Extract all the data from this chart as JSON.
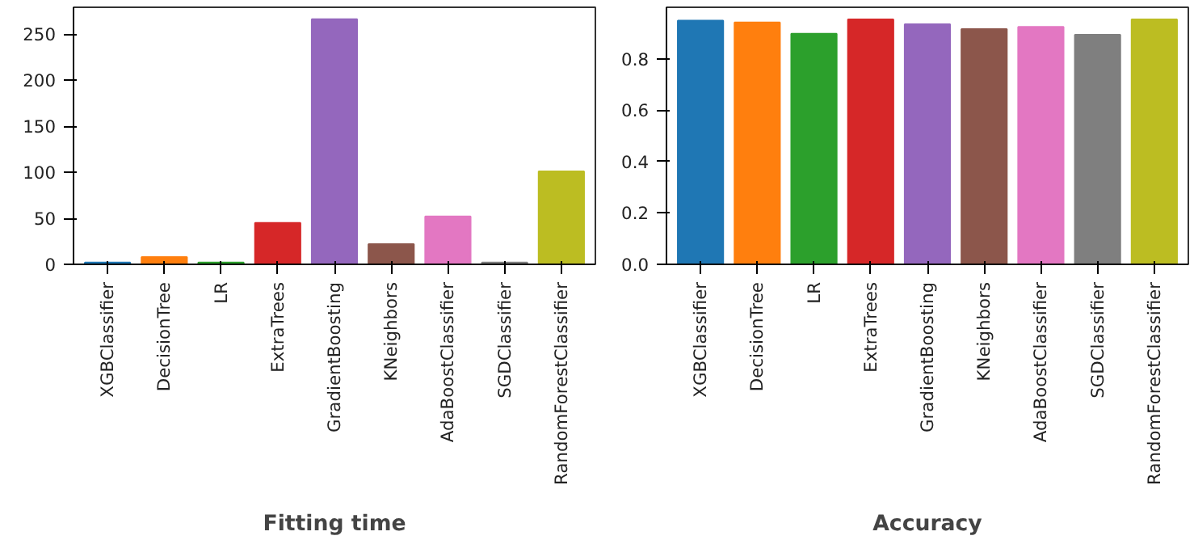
{
  "chart_data": [
    {
      "type": "bar",
      "xlabel": "Fitting time",
      "categories": [
        "XGBClassifier",
        "DecisionTree",
        "LR",
        "ExtraTrees",
        "GradientBoosting",
        "KNeighbors",
        "AdaBoostClassifier",
        "SGDClassifier",
        "RandomForestClassifier"
      ],
      "values": [
        2,
        8,
        2,
        45,
        266,
        22,
        52,
        2,
        101
      ],
      "colors": [
        "#1f77b4",
        "#ff7f0e",
        "#2ca02c",
        "#d62728",
        "#9467bd",
        "#8c564b",
        "#e377c2",
        "#7f7f7f",
        "#bcbd22"
      ],
      "ylim": [
        0,
        279
      ],
      "yticks": [
        0,
        50,
        100,
        150,
        200,
        250
      ],
      "grid": false
    },
    {
      "type": "bar",
      "xlabel": "Accuracy",
      "categories": [
        "XGBClassifier",
        "DecisionTree",
        "LR",
        "ExtraTrees",
        "GradientBoosting",
        "KNeighbors",
        "AdaBoostClassifier",
        "SGDClassifier",
        "RandomForestClassifier"
      ],
      "values": [
        0.948,
        0.941,
        0.897,
        0.953,
        0.934,
        0.915,
        0.924,
        0.893,
        0.953
      ],
      "colors": [
        "#1f77b4",
        "#ff7f0e",
        "#2ca02c",
        "#d62728",
        "#9467bd",
        "#8c564b",
        "#e377c2",
        "#7f7f7f",
        "#bcbd22"
      ],
      "ylim": [
        0,
        1.0
      ],
      "yticks": [
        {
          "value": 0,
          "label": "0.0"
        },
        {
          "value": 0.2,
          "label": "0.2"
        },
        {
          "value": 0.4,
          "label": "0.4"
        },
        {
          "value": 0.6,
          "label": "0.6"
        },
        {
          "value": 0.8,
          "label": "0.8"
        }
      ],
      "grid": false
    }
  ]
}
